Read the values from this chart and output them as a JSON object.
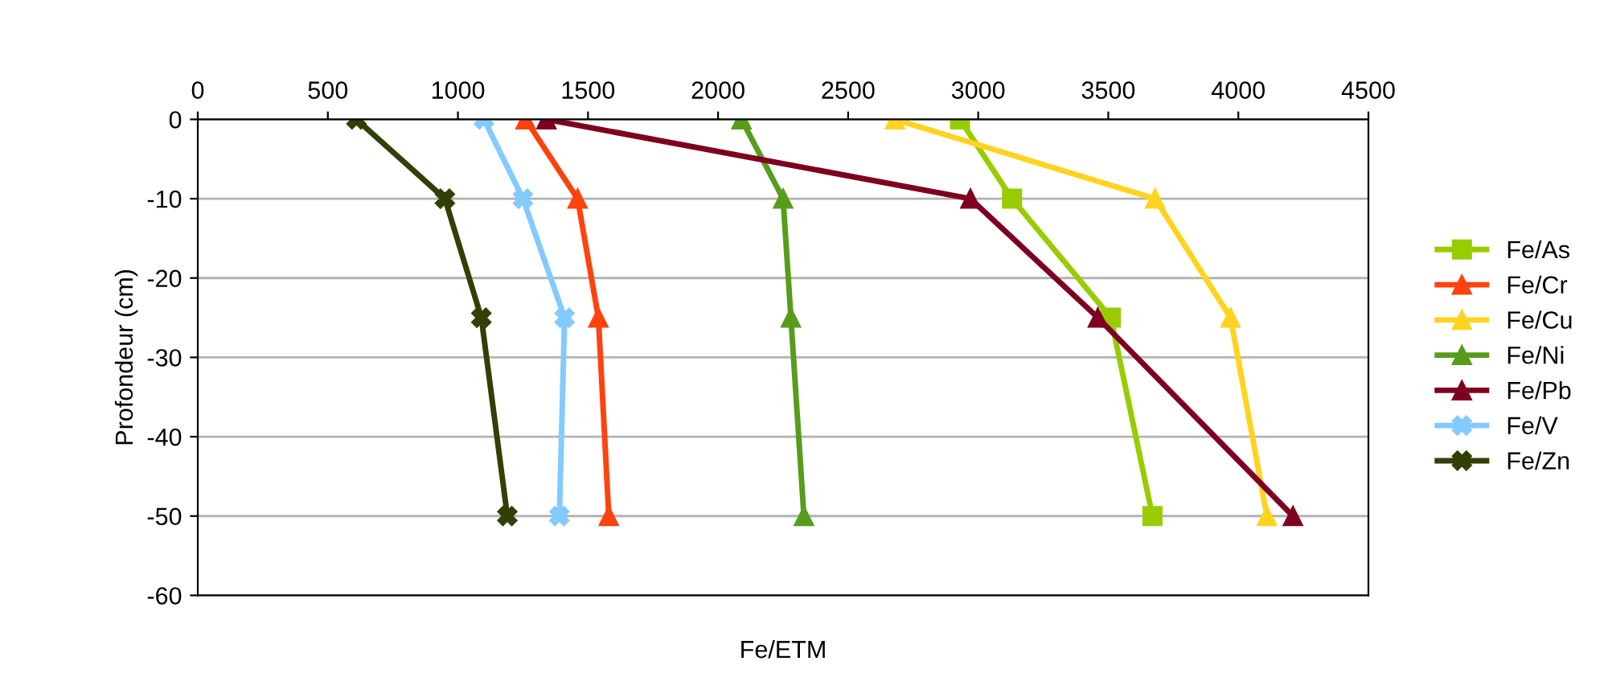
{
  "chart_data": {
    "type": "line",
    "xlabel": "Fe/ETM",
    "ylabel": "Profondeur (cm)",
    "xlim": [
      0,
      4500
    ],
    "xticks": [
      0,
      500,
      1000,
      1500,
      2000,
      2500,
      3000,
      3500,
      4000,
      4500
    ],
    "ylim": [
      -60,
      0
    ],
    "yticks": [
      -60,
      -50,
      -40,
      -30,
      -20,
      -10,
      0
    ],
    "grid": "y",
    "legend": "right",
    "series": [
      {
        "name": "Fe/As",
        "color": "#99cc00",
        "marker": "square",
        "x": [
          2930,
          3130,
          3510,
          3670
        ],
        "values": [
          0,
          -10,
          -25,
          -50
        ]
      },
      {
        "name": "Fe/Cr",
        "color": "#ff420e",
        "marker": "triangle",
        "x": [
          1260,
          1460,
          1540,
          1580
        ],
        "values": [
          0,
          -10,
          -25,
          -50
        ]
      },
      {
        "name": "Fe/Cu",
        "color": "#ffd320",
        "marker": "triangle",
        "x": [
          2680,
          3680,
          3970,
          4110
        ],
        "values": [
          0,
          -10,
          -25,
          -50
        ]
      },
      {
        "name": "Fe/Ni",
        "color": "#579d1c",
        "marker": "triangle",
        "x": [
          2090,
          2250,
          2280,
          2330
        ],
        "values": [
          0,
          -10,
          -25,
          -50
        ]
      },
      {
        "name": "Fe/Pb",
        "color": "#7e0021",
        "marker": "triangle",
        "x": [
          1340,
          2970,
          3460,
          4210
        ],
        "values": [
          0,
          -10,
          -25,
          -50
        ]
      },
      {
        "name": "Fe/V",
        "color": "#83caff",
        "marker": "cross",
        "x": [
          1100,
          1250,
          1410,
          1390
        ],
        "values": [
          0,
          -10,
          -25,
          -50
        ]
      },
      {
        "name": "Fe/Zn",
        "color": "#314004",
        "marker": "cross",
        "x": [
          610,
          950,
          1090,
          1190
        ],
        "values": [
          0,
          -10,
          -25,
          -50
        ]
      }
    ]
  }
}
